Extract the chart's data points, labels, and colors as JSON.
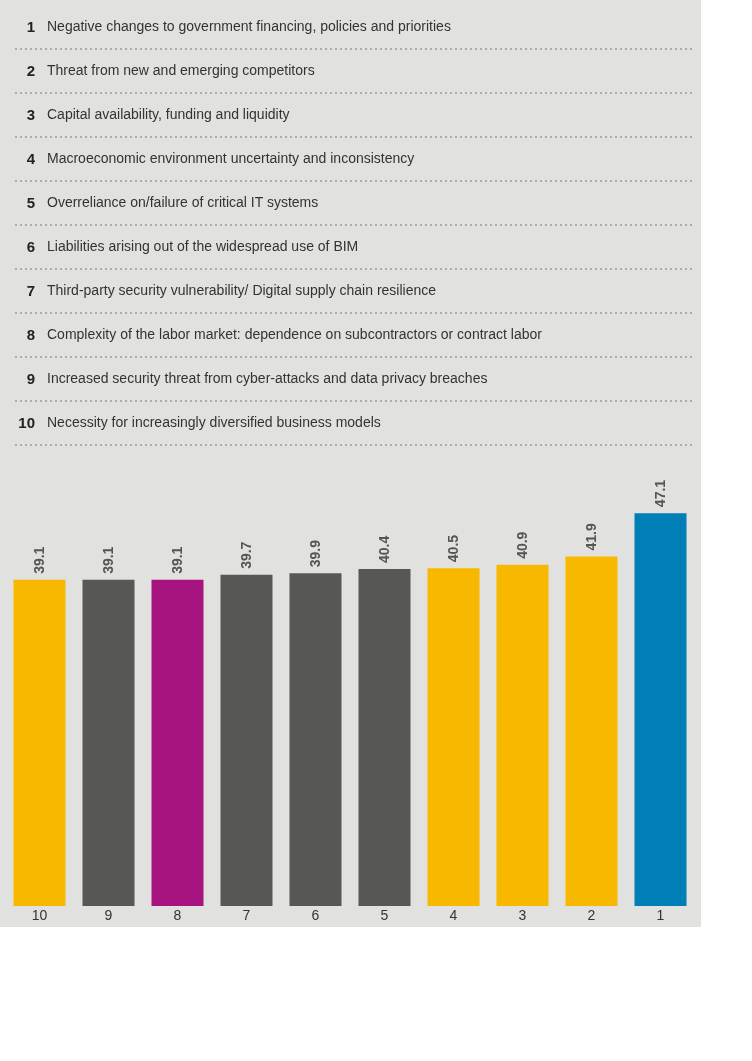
{
  "chart_data": {
    "type": "bar",
    "categories": [
      "10",
      "9",
      "8",
      "7",
      "6",
      "5",
      "4",
      "3",
      "2",
      "1"
    ],
    "values": [
      39.1,
      39.1,
      39.1,
      39.7,
      39.9,
      40.4,
      40.5,
      40.9,
      41.9,
      47.1
    ],
    "colors": [
      "#f9b800",
      "#575756",
      "#a8147f",
      "#575756",
      "#575756",
      "#575756",
      "#f9b800",
      "#f9b800",
      "#f9b800",
      "#007eb6"
    ],
    "data_labels": true,
    "annotations": [
      "1 Negative changes to government financing, policies and priorities",
      "2 Threat from new and emerging competitors",
      "3 Capital availability, funding and liquidity",
      "4 Macroeconomic environment uncertainty and inconsistency",
      "5 Overreliance on/failure of critical IT systems",
      "6 Liabilities arising out of the widespread use of BIM",
      "7 Third-party security vulnerability/ Digital supply chain resilience",
      "8 Complexity of the labor market: dependence on subcontractors or contract labor",
      "9 Increased security threat from cyber-attacks and data privacy breaches",
      "10 Necessity for increasingly diversified business models"
    ]
  }
}
